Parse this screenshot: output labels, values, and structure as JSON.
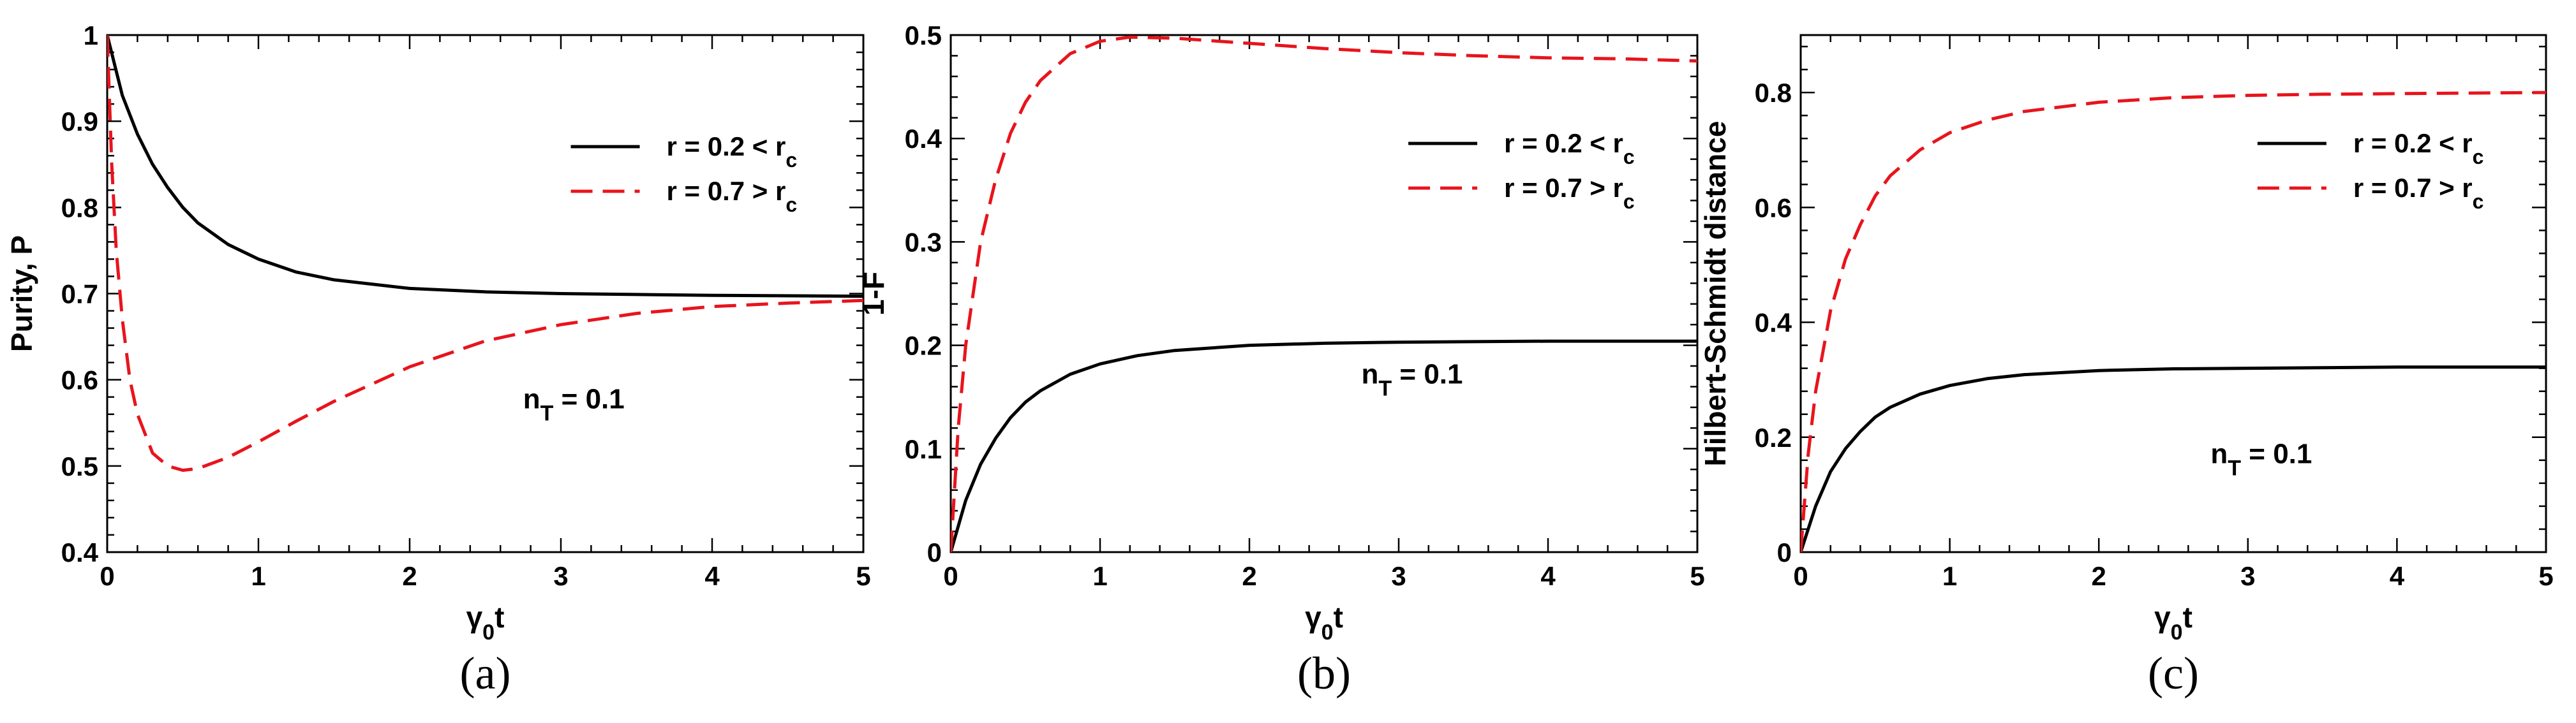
{
  "chart_data": [
    {
      "type": "line",
      "panel": "(a)",
      "xlabel": "γ0t",
      "ylabel": "Purity, P",
      "xlim": [
        0,
        5
      ],
      "ylim": [
        0.4,
        1.0
      ],
      "xticks": [
        "0",
        "1",
        "2",
        "3",
        "4",
        "5"
      ],
      "yticks": [
        "0.4",
        "0.5",
        "0.6",
        "0.7",
        "0.8",
        "0.9",
        "1"
      ],
      "annotation": "nT = 0.1",
      "legend_position": "top-right",
      "series": [
        {
          "name": "r = 0.2 <  rc",
          "color": "#000000",
          "style": "solid",
          "x": [
            0,
            0.1,
            0.2,
            0.3,
            0.4,
            0.5,
            0.6,
            0.8,
            1.0,
            1.25,
            1.5,
            2.0,
            2.5,
            3.0,
            3.5,
            4.0,
            5.0
          ],
          "y": [
            1.0,
            0.93,
            0.885,
            0.85,
            0.823,
            0.8,
            0.782,
            0.757,
            0.74,
            0.725,
            0.716,
            0.706,
            0.702,
            0.7,
            0.699,
            0.698,
            0.697
          ]
        },
        {
          "name": "r = 0.7 > rc",
          "color": "#e8141c",
          "style": "dashed",
          "x": [
            0,
            0.03,
            0.06,
            0.1,
            0.15,
            0.2,
            0.3,
            0.4,
            0.5,
            0.6,
            0.8,
            1.0,
            1.25,
            1.5,
            2.0,
            2.5,
            3.0,
            3.5,
            4.0,
            4.5,
            5.0
          ],
          "y": [
            1.0,
            0.85,
            0.75,
            0.67,
            0.6,
            0.56,
            0.515,
            0.5,
            0.495,
            0.497,
            0.51,
            0.528,
            0.552,
            0.575,
            0.615,
            0.645,
            0.664,
            0.677,
            0.685,
            0.689,
            0.692
          ]
        }
      ]
    },
    {
      "type": "line",
      "panel": "(b)",
      "xlabel": "γ0t",
      "ylabel": "1-F",
      "xlim": [
        0,
        5
      ],
      "ylim": [
        0,
        0.5
      ],
      "xticks": [
        "0",
        "1",
        "2",
        "3",
        "4",
        "5"
      ],
      "yticks": [
        "0",
        "0.1",
        "0.2",
        "0.3",
        "0.4",
        "0.5"
      ],
      "annotation": "nT = 0.1",
      "legend_position": "top-right",
      "series": [
        {
          "name": "r = 0.2 <  rc",
          "color": "#000000",
          "style": "solid",
          "x": [
            0,
            0.1,
            0.2,
            0.3,
            0.4,
            0.5,
            0.6,
            0.8,
            1.0,
            1.25,
            1.5,
            2.0,
            2.5,
            3.0,
            4.0,
            5.0
          ],
          "y": [
            0,
            0.05,
            0.085,
            0.11,
            0.13,
            0.145,
            0.156,
            0.172,
            0.182,
            0.19,
            0.195,
            0.2,
            0.202,
            0.203,
            0.204,
            0.204
          ]
        },
        {
          "name": "r = 0.7 > rc",
          "color": "#e8141c",
          "style": "dashed",
          "x": [
            0,
            0.05,
            0.1,
            0.2,
            0.3,
            0.4,
            0.5,
            0.6,
            0.8,
            1.0,
            1.2,
            1.5,
            2.0,
            2.5,
            3.0,
            3.5,
            4.0,
            4.5,
            5.0
          ],
          "y": [
            0,
            0.12,
            0.2,
            0.3,
            0.36,
            0.405,
            0.435,
            0.456,
            0.482,
            0.494,
            0.498,
            0.497,
            0.492,
            0.487,
            0.483,
            0.48,
            0.478,
            0.477,
            0.475
          ]
        }
      ]
    },
    {
      "type": "line",
      "panel": "(c)",
      "xlabel": "γ0t",
      "ylabel": "Hilbert-Schmidt distance",
      "xlim": [
        0,
        5
      ],
      "ylim": [
        0,
        0.9
      ],
      "xticks": [
        "0",
        "1",
        "2",
        "3",
        "4",
        "5"
      ],
      "yticks": [
        "0",
        "0.2",
        "0.4",
        "0.6",
        "0.8"
      ],
      "annotation": "nT = 0.1",
      "legend_position": "top-right",
      "series": [
        {
          "name": "r = 0.2 <  rc",
          "color": "#000000",
          "style": "solid",
          "x": [
            0,
            0.1,
            0.2,
            0.3,
            0.4,
            0.5,
            0.6,
            0.8,
            1.0,
            1.25,
            1.5,
            2.0,
            2.5,
            3.0,
            4.0,
            5.0
          ],
          "y": [
            0,
            0.08,
            0.14,
            0.18,
            0.21,
            0.235,
            0.252,
            0.275,
            0.29,
            0.302,
            0.309,
            0.316,
            0.319,
            0.32,
            0.322,
            0.322
          ]
        },
        {
          "name": "r = 0.7 > rc",
          "color": "#e8141c",
          "style": "dashed",
          "x": [
            0,
            0.05,
            0.1,
            0.2,
            0.3,
            0.4,
            0.5,
            0.6,
            0.8,
            1.0,
            1.25,
            1.5,
            2.0,
            2.5,
            3.0,
            3.5,
            4.0,
            4.5,
            5.0
          ],
          "y": [
            0,
            0.17,
            0.28,
            0.42,
            0.51,
            0.57,
            0.62,
            0.655,
            0.7,
            0.73,
            0.752,
            0.767,
            0.783,
            0.791,
            0.795,
            0.797,
            0.798,
            0.799,
            0.8
          ]
        }
      ]
    }
  ]
}
